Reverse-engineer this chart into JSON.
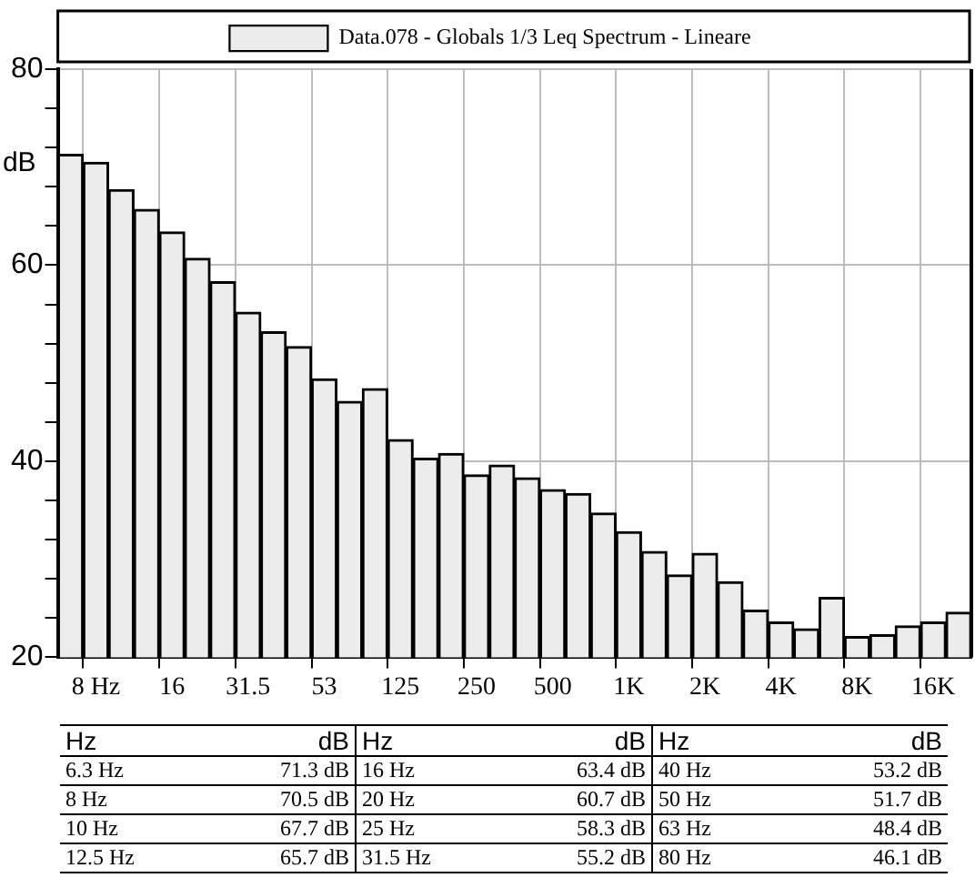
{
  "chart_data": {
    "type": "bar",
    "ylabel": "dB",
    "categories": [
      null,
      "8 Hz",
      null,
      null,
      "16",
      null,
      null,
      "31.5",
      null,
      null,
      "53",
      null,
      null,
      "125",
      null,
      null,
      "250",
      null,
      null,
      "500",
      null,
      null,
      "1K",
      null,
      null,
      "2K",
      null,
      null,
      "4K",
      null,
      null,
      "8K",
      null,
      null,
      "16K",
      null
    ],
    "series": [
      {
        "name": "Data.078 - Globals 1/3 Leq Spectrum - Lineare",
        "color": "#ececec",
        "values": [
          71.3,
          70.5,
          67.7,
          65.7,
          63.4,
          60.7,
          58.3,
          55.2,
          53.2,
          51.7,
          48.4,
          46.1,
          47.4,
          42.2,
          40.3,
          40.8,
          38.6,
          39.6,
          38.3,
          37.1,
          36.7,
          34.7,
          32.8,
          30.8,
          28.4,
          30.6,
          27.7,
          24.8,
          23.6,
          22.9,
          26.1,
          22.1,
          22.3,
          23.2,
          23.6,
          24.6
        ]
      }
    ],
    "ylim": [
      20,
      80
    ],
    "yticks": [
      20,
      {
        "value": 24,
        "label": null
      },
      {
        "value": 28,
        "label": null
      },
      {
        "value": 32,
        "label": null
      },
      {
        "value": 36,
        "label": null
      },
      40,
      {
        "value": 44,
        "label": null
      },
      {
        "value": 48,
        "label": null
      },
      {
        "value": 52,
        "label": null
      },
      {
        "value": 56,
        "label": null
      },
      60,
      {
        "value": 64,
        "label": null
      },
      {
        "value": 68,
        "label": null
      },
      {
        "value": 72,
        "label": null
      },
      {
        "value": 76,
        "label": null
      },
      80
    ],
    "grid": true,
    "legend": "top",
    "data_labels": false,
    "annotations": [
      "Hz",
      "dB",
      "6.3 Hz",
      "71.3 dB",
      "8 Hz",
      "70.5 dB",
      "10 Hz",
      "67.7 dB",
      "12.5 Hz",
      "65.7 dB",
      "16 Hz",
      "63.4 dB",
      "20 Hz",
      "60.7 dB",
      "25 Hz",
      "58.3 dB",
      "31.5 Hz",
      "55.2 dB",
      "40 Hz",
      "53.2 dB",
      "50 Hz",
      "51.7 dB",
      "63 Hz",
      "48.4 dB",
      "80 Hz",
      "46.1 dB"
    ]
  }
}
